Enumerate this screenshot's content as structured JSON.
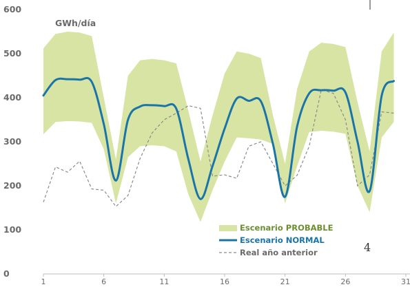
{
  "chart_data": {
    "type": "line",
    "ylabel": "GWh/día",
    "ylim": [
      0,
      600
    ],
    "y_ticks": [
      0,
      100,
      200,
      300,
      400,
      500,
      600
    ],
    "x_ticks": [
      1,
      6,
      11,
      16,
      21,
      26,
      31
    ],
    "x": [
      1,
      2,
      3,
      4,
      5,
      6,
      7,
      8,
      9,
      10,
      11,
      12,
      13,
      14,
      15,
      16,
      17,
      18,
      19,
      20,
      21,
      22,
      23,
      24,
      25,
      26,
      27,
      28,
      29,
      30
    ],
    "band": {
      "name": "Escenario PROBABLE",
      "low": [
        317,
        345,
        347,
        346,
        343,
        283,
        160,
        265,
        290,
        292,
        290,
        278,
        180,
        118,
        190,
        255,
        310,
        308,
        305,
        295,
        160,
        245,
        322,
        325,
        323,
        318,
        200,
        140,
        310,
        345
      ],
      "high": [
        512,
        545,
        550,
        548,
        540,
        400,
        260,
        450,
        485,
        488,
        485,
        478,
        370,
        255,
        360,
        455,
        505,
        500,
        490,
        360,
        250,
        420,
        505,
        525,
        522,
        515,
        390,
        278,
        505,
        548
      ]
    },
    "series": [
      {
        "name": "Escenario NORMAL",
        "color": "#1a74a8",
        "values": [
          405,
          440,
          442,
          441,
          436,
          340,
          212,
          350,
          380,
          383,
          381,
          375,
          260,
          170,
          245,
          330,
          398,
          393,
          392,
          295,
          175,
          335,
          410,
          417,
          416,
          412,
          300,
          188,
          405,
          438
        ]
      },
      {
        "name": "Real año anterior",
        "color": "#8a8a8a",
        "values": [
          163,
          243,
          231,
          256,
          193,
          190,
          153,
          178,
          262,
          320,
          350,
          365,
          382,
          376,
          222,
          225,
          217,
          290,
          300,
          250,
          200,
          224,
          290,
          418,
          410,
          350,
          200,
          225,
          368,
          365
        ]
      }
    ],
    "legend_position": "bottom-right",
    "colors": {
      "band": "#d7e4a4",
      "normal": "#1a74a8",
      "real": "#8a8a8a",
      "band_label": "#6d8e2e"
    }
  },
  "legend": {
    "probable": "Escenario PROBABLE",
    "normal": "Escenario NORMAL",
    "real": "Real año anterior"
  },
  "page_number": "4"
}
